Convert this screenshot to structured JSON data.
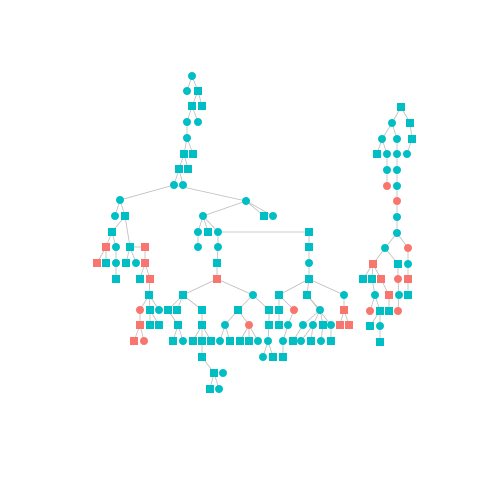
{
  "colors": {
    "background": "#ffffff",
    "edge": "#bdbdbd",
    "teal": "#00bfc4",
    "red": "#f8766d"
  },
  "legend": "none",
  "node_count": 146,
  "shapes": [
    "circle",
    "square"
  ],
  "tree_count": 2
}
